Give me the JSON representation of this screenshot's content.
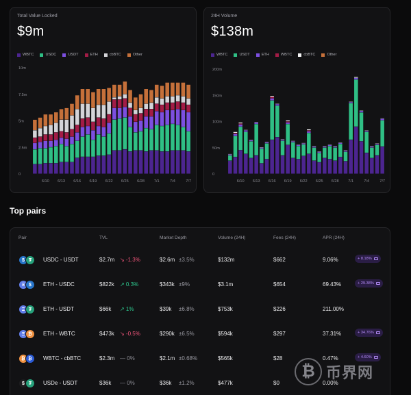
{
  "tvl": {
    "label": "Total Value Locked",
    "value": "$9m",
    "legend": [
      {
        "name": "WBTC",
        "color": "#4c2590"
      },
      {
        "name": "USDC",
        "color": "#2fbf85"
      },
      {
        "name": "USDT",
        "color": "#7c4fe0"
      },
      {
        "name": "ETH",
        "color": "#a31c46"
      },
      {
        "name": "cbBTC",
        "color": "#d4d4d8"
      },
      {
        "name": "Other",
        "color": "#c5703a"
      }
    ]
  },
  "volume": {
    "label": "24H Volume",
    "value": "$138m",
    "legend": [
      {
        "name": "WBTC",
        "color": "#4c2590"
      },
      {
        "name": "USDT",
        "color": "#2fbf85"
      },
      {
        "name": "ETH",
        "color": "#7c4fe0"
      },
      {
        "name": "WBTC",
        "color": "#a31c46"
      },
      {
        "name": "cbBTC",
        "color": "#f4f4f5"
      },
      {
        "name": "Other",
        "color": "#c5703a"
      }
    ]
  },
  "chart_data": [
    {
      "type": "bar",
      "stacked": true,
      "title": "Total Value Locked",
      "x": [
        "6/8",
        "6/9",
        "6/10",
        "6/11",
        "6/12",
        "6/13",
        "6/14",
        "6/15",
        "6/16",
        "6/17",
        "6/18",
        "6/19",
        "6/20",
        "6/21",
        "6/22",
        "6/23",
        "6/24",
        "6/25",
        "6/26",
        "6/27",
        "6/28",
        "6/29",
        "6/30",
        "7/1",
        "7/2",
        "7/3",
        "7/4",
        "7/5",
        "7/6",
        "7/7"
      ],
      "xticks": [
        "6/10",
        "6/13",
        "6/16",
        "6/19",
        "6/22",
        "6/25",
        "6/28",
        "7/1",
        "7/4",
        "7/7"
      ],
      "yticks": [
        "0",
        "2.5m",
        "5m",
        "7.5m",
        "10m"
      ],
      "ylim": [
        0,
        10
      ],
      "series": [
        {
          "name": "WBTC",
          "color": "#4c2590",
          "values": [
            0.9,
            0.9,
            1.0,
            1.0,
            1.0,
            1.1,
            1.1,
            1.1,
            1.5,
            1.6,
            1.6,
            1.6,
            1.7,
            1.7,
            1.8,
            2.2,
            2.2,
            2.3,
            2.1,
            2.2,
            2.2,
            2.1,
            2.2,
            2.2,
            2.1,
            2.1,
            2.2,
            2.2,
            2.2,
            2.1
          ]
        },
        {
          "name": "USDC",
          "color": "#2fbf85",
          "values": [
            1.4,
            1.5,
            1.4,
            1.5,
            1.6,
            1.7,
            1.5,
            1.7,
            1.6,
            1.9,
            2.1,
            1.6,
            2.0,
            1.8,
            2.0,
            2.9,
            3.0,
            3.0,
            2.3,
            1.7,
            1.8,
            2.2,
            2.0,
            2.4,
            2.4,
            2.5,
            2.5,
            2.4,
            2.2,
            1.9
          ]
        },
        {
          "name": "USDT",
          "color": "#7c4fe0",
          "values": [
            0.6,
            0.6,
            0.7,
            0.6,
            0.6,
            0.6,
            0.7,
            0.7,
            0.8,
            0.9,
            0.8,
            0.9,
            0.8,
            0.9,
            1.0,
            1.1,
            1.0,
            1.0,
            1.0,
            1.0,
            1.0,
            1.1,
            1.2,
            1.3,
            1.3,
            1.4,
            1.3,
            1.5,
            1.6,
            1.8
          ]
        },
        {
          "name": "ETH",
          "color": "#a31c46",
          "values": [
            0.5,
            0.5,
            0.6,
            0.6,
            0.7,
            0.6,
            0.6,
            0.7,
            0.7,
            0.8,
            0.8,
            0.8,
            0.8,
            0.8,
            0.8,
            0.8,
            0.8,
            0.8,
            0.8,
            0.7,
            0.7,
            0.7,
            0.7,
            0.7,
            0.7,
            0.7,
            0.7,
            0.7,
            0.7,
            0.7
          ]
        },
        {
          "name": "cbBTC",
          "color": "#d4d4d8",
          "values": [
            0.7,
            0.8,
            0.8,
            0.9,
            0.9,
            1.1,
            1.2,
            1.3,
            1.5,
            1.4,
            1.3,
            1.3,
            1.2,
            1.3,
            1.2,
            0.2,
            0.3,
            0.4,
            0.5,
            0.4,
            0.5,
            0.5,
            0.6,
            0.6,
            0.6,
            0.6,
            0.6,
            0.6,
            0.6,
            0.6
          ]
        },
        {
          "name": "Other",
          "color": "#c5703a",
          "values": [
            1.0,
            1.0,
            1.1,
            1.0,
            1.0,
            1.0,
            1.1,
            1.1,
            1.3,
            1.4,
            1.4,
            1.5,
            1.5,
            1.5,
            1.3,
            1.2,
            1.1,
            1.2,
            1.2,
            1.2,
            1.3,
            1.4,
            1.2,
            1.2,
            1.2,
            1.3,
            1.3,
            1.2,
            1.3,
            1.3
          ]
        }
      ]
    },
    {
      "type": "bar",
      "stacked": true,
      "title": "24H Volume",
      "x": [
        "6/8",
        "6/9",
        "6/10",
        "6/11",
        "6/12",
        "6/13",
        "6/14",
        "6/15",
        "6/16",
        "6/17",
        "6/18",
        "6/19",
        "6/20",
        "6/21",
        "6/22",
        "6/23",
        "6/24",
        "6/25",
        "6/26",
        "6/27",
        "6/28",
        "6/29",
        "6/30",
        "7/1",
        "7/2",
        "7/3",
        "7/4",
        "7/5",
        "7/6",
        "7/7"
      ],
      "xticks": [
        "6/10",
        "6/13",
        "6/16",
        "6/19",
        "6/22",
        "6/25",
        "6/28",
        "7/1",
        "7/4",
        "7/7"
      ],
      "yticks": [
        "0",
        "50m",
        "100m",
        "150m",
        "200m"
      ],
      "ylim": [
        0,
        200
      ],
      "series": [
        {
          "name": "WBTC",
          "color": "#4c2590",
          "values": [
            25,
            32,
            45,
            38,
            30,
            35,
            20,
            28,
            65,
            70,
            35,
            55,
            30,
            28,
            34,
            38,
            25,
            22,
            30,
            28,
            25,
            32,
            24,
            65,
            90,
            62,
            40,
            30,
            35,
            52
          ]
        },
        {
          "name": "USDT",
          "color": "#2fbf85",
          "values": [
            10,
            40,
            45,
            42,
            32,
            60,
            28,
            30,
            75,
            60,
            28,
            40,
            30,
            25,
            22,
            40,
            25,
            18,
            20,
            25,
            25,
            25,
            18,
            70,
            90,
            55,
            40,
            20,
            20,
            50
          ]
        },
        {
          "name": "ETH",
          "color": "#7c4fe0",
          "values": [
            2,
            4,
            4,
            3,
            2,
            3,
            2,
            2,
            4,
            3,
            2,
            3,
            2,
            2,
            2,
            3,
            2,
            2,
            2,
            2,
            2,
            2,
            2,
            2,
            3,
            3,
            2,
            2,
            2,
            3
          ]
        },
        {
          "name": "WBTC",
          "color": "#a31c46",
          "values": [
            0,
            2,
            2,
            0,
            0,
            0,
            0,
            0,
            3,
            0,
            0,
            2,
            0,
            0,
            0,
            2,
            0,
            0,
            0,
            0,
            0,
            0,
            0,
            0,
            0,
            0,
            0,
            0,
            0,
            0
          ]
        },
        {
          "name": "cbBTC",
          "color": "#f4f4f5",
          "values": [
            1,
            2,
            2,
            1,
            1,
            1,
            1,
            1,
            2,
            1,
            1,
            2,
            1,
            1,
            1,
            2,
            1,
            1,
            1,
            1,
            1,
            1,
            1,
            1,
            2,
            1,
            1,
            1,
            1,
            1
          ]
        },
        {
          "name": "Other",
          "color": "#c5703a",
          "values": [
            0,
            0,
            0,
            0,
            0,
            0,
            0,
            0,
            0,
            0,
            0,
            0,
            0,
            0,
            0,
            0,
            0,
            0,
            0,
            0,
            0,
            0,
            0,
            0,
            0,
            0,
            0,
            0,
            0,
            0
          ]
        }
      ]
    }
  ],
  "top_pairs": {
    "title": "Top pairs",
    "headers": {
      "pair": "Pair",
      "tvl": "TVL",
      "depth": "Market Depth",
      "volume": "Volume (24H)",
      "fees": "Fees (24H)",
      "apr": "APR (24H)"
    },
    "rows": [
      {
        "pair": "USDC - USDT",
        "coins": [
          "$",
          "₮"
        ],
        "coin_colors": [
          "#2775ca",
          "#26a17b"
        ],
        "tvl": "$2.7m",
        "change": "↘ -1.3%",
        "trend": "dn",
        "depth": "$2.6m",
        "depth_pct": "±3.5%",
        "volume": "$132m",
        "fees": "$662",
        "apr": "9.06%",
        "bonus": "+ 8.18%"
      },
      {
        "pair": "ETH - USDC",
        "coins": [
          "Ξ",
          "$"
        ],
        "coin_colors": [
          "#627eea",
          "#2775ca"
        ],
        "tvl": "$822k",
        "change": "↗ 0.3%",
        "trend": "up",
        "depth": "$343k",
        "depth_pct": "±9%",
        "volume": "$3.1m",
        "fees": "$654",
        "apr": "69.43%",
        "bonus": "+ 29.38%"
      },
      {
        "pair": "ETH - USDT",
        "coins": [
          "Ξ",
          "₮"
        ],
        "coin_colors": [
          "#627eea",
          "#26a17b"
        ],
        "tvl": "$66k",
        "change": "↗ 1%",
        "trend": "up",
        "depth": "$39k",
        "depth_pct": "±6.8%",
        "volume": "$753k",
        "fees": "$226",
        "apr": "211.00%",
        "bonus": ""
      },
      {
        "pair": "ETH - WBTC",
        "coins": [
          "Ξ",
          "₿"
        ],
        "coin_colors": [
          "#627eea",
          "#f09242"
        ],
        "tvl": "$473k",
        "change": "↘ -0.5%",
        "trend": "dn",
        "depth": "$290k",
        "depth_pct": "±6.5%",
        "volume": "$594k",
        "fees": "$297",
        "apr": "37.31%",
        "bonus": "+ 34.76%"
      },
      {
        "pair": "WBTC - cbBTC",
        "coins": [
          "₿",
          "₿"
        ],
        "coin_colors": [
          "#f09242",
          "#2b5bd7"
        ],
        "tvl": "$2.3m",
        "change": "— 0%",
        "trend": "flat",
        "depth": "$2.1m",
        "depth_pct": "±0.68%",
        "volume": "$565k",
        "fees": "$28",
        "apr": "0.47%",
        "bonus": "+ 4.60%"
      },
      {
        "pair": "USDe - USDT",
        "coins": [
          "$",
          "₮"
        ],
        "coin_colors": [
          "#1c1c1e",
          "#26a17b"
        ],
        "tvl": "$36k",
        "change": "— 0%",
        "trend": "flat",
        "depth": "$36k",
        "depth_pct": "±1.2%",
        "volume": "$477k",
        "fees": "$0",
        "apr": "0.00%",
        "bonus": ""
      }
    ]
  },
  "watermark": {
    "symbol": "₿",
    "text": "币界网"
  }
}
